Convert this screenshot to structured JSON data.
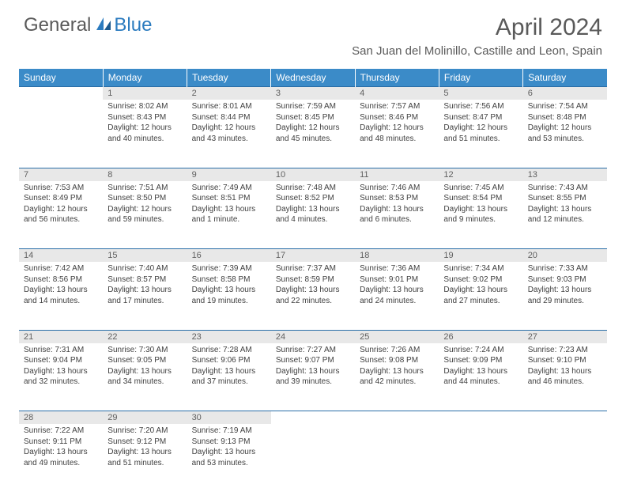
{
  "logo": {
    "general": "General",
    "blue": "Blue"
  },
  "title": "April 2024",
  "location": "San Juan del Molinillo, Castille and Leon, Spain",
  "weekdays": [
    "Sunday",
    "Monday",
    "Tuesday",
    "Wednesday",
    "Thursday",
    "Friday",
    "Saturday"
  ],
  "colors": {
    "header_bg": "#3b8bc8",
    "header_text": "#ffffff",
    "daynum_bg": "#e8e8e8",
    "row_border": "#2b6fa8",
    "body_text": "#404040",
    "title_text": "#5a5a5a",
    "logo_blue": "#2b7bbf"
  },
  "weeks": [
    {
      "nums": [
        "",
        "1",
        "2",
        "3",
        "4",
        "5",
        "6"
      ],
      "cells": [
        {
          "sunrise": "",
          "sunset": "",
          "daylight": ""
        },
        {
          "sunrise": "Sunrise: 8:02 AM",
          "sunset": "Sunset: 8:43 PM",
          "daylight": "Daylight: 12 hours and 40 minutes."
        },
        {
          "sunrise": "Sunrise: 8:01 AM",
          "sunset": "Sunset: 8:44 PM",
          "daylight": "Daylight: 12 hours and 43 minutes."
        },
        {
          "sunrise": "Sunrise: 7:59 AM",
          "sunset": "Sunset: 8:45 PM",
          "daylight": "Daylight: 12 hours and 45 minutes."
        },
        {
          "sunrise": "Sunrise: 7:57 AM",
          "sunset": "Sunset: 8:46 PM",
          "daylight": "Daylight: 12 hours and 48 minutes."
        },
        {
          "sunrise": "Sunrise: 7:56 AM",
          "sunset": "Sunset: 8:47 PM",
          "daylight": "Daylight: 12 hours and 51 minutes."
        },
        {
          "sunrise": "Sunrise: 7:54 AM",
          "sunset": "Sunset: 8:48 PM",
          "daylight": "Daylight: 12 hours and 53 minutes."
        }
      ]
    },
    {
      "nums": [
        "7",
        "8",
        "9",
        "10",
        "11",
        "12",
        "13"
      ],
      "cells": [
        {
          "sunrise": "Sunrise: 7:53 AM",
          "sunset": "Sunset: 8:49 PM",
          "daylight": "Daylight: 12 hours and 56 minutes."
        },
        {
          "sunrise": "Sunrise: 7:51 AM",
          "sunset": "Sunset: 8:50 PM",
          "daylight": "Daylight: 12 hours and 59 minutes."
        },
        {
          "sunrise": "Sunrise: 7:49 AM",
          "sunset": "Sunset: 8:51 PM",
          "daylight": "Daylight: 13 hours and 1 minute."
        },
        {
          "sunrise": "Sunrise: 7:48 AM",
          "sunset": "Sunset: 8:52 PM",
          "daylight": "Daylight: 13 hours and 4 minutes."
        },
        {
          "sunrise": "Sunrise: 7:46 AM",
          "sunset": "Sunset: 8:53 PM",
          "daylight": "Daylight: 13 hours and 6 minutes."
        },
        {
          "sunrise": "Sunrise: 7:45 AM",
          "sunset": "Sunset: 8:54 PM",
          "daylight": "Daylight: 13 hours and 9 minutes."
        },
        {
          "sunrise": "Sunrise: 7:43 AM",
          "sunset": "Sunset: 8:55 PM",
          "daylight": "Daylight: 13 hours and 12 minutes."
        }
      ]
    },
    {
      "nums": [
        "14",
        "15",
        "16",
        "17",
        "18",
        "19",
        "20"
      ],
      "cells": [
        {
          "sunrise": "Sunrise: 7:42 AM",
          "sunset": "Sunset: 8:56 PM",
          "daylight": "Daylight: 13 hours and 14 minutes."
        },
        {
          "sunrise": "Sunrise: 7:40 AM",
          "sunset": "Sunset: 8:57 PM",
          "daylight": "Daylight: 13 hours and 17 minutes."
        },
        {
          "sunrise": "Sunrise: 7:39 AM",
          "sunset": "Sunset: 8:58 PM",
          "daylight": "Daylight: 13 hours and 19 minutes."
        },
        {
          "sunrise": "Sunrise: 7:37 AM",
          "sunset": "Sunset: 8:59 PM",
          "daylight": "Daylight: 13 hours and 22 minutes."
        },
        {
          "sunrise": "Sunrise: 7:36 AM",
          "sunset": "Sunset: 9:01 PM",
          "daylight": "Daylight: 13 hours and 24 minutes."
        },
        {
          "sunrise": "Sunrise: 7:34 AM",
          "sunset": "Sunset: 9:02 PM",
          "daylight": "Daylight: 13 hours and 27 minutes."
        },
        {
          "sunrise": "Sunrise: 7:33 AM",
          "sunset": "Sunset: 9:03 PM",
          "daylight": "Daylight: 13 hours and 29 minutes."
        }
      ]
    },
    {
      "nums": [
        "21",
        "22",
        "23",
        "24",
        "25",
        "26",
        "27"
      ],
      "cells": [
        {
          "sunrise": "Sunrise: 7:31 AM",
          "sunset": "Sunset: 9:04 PM",
          "daylight": "Daylight: 13 hours and 32 minutes."
        },
        {
          "sunrise": "Sunrise: 7:30 AM",
          "sunset": "Sunset: 9:05 PM",
          "daylight": "Daylight: 13 hours and 34 minutes."
        },
        {
          "sunrise": "Sunrise: 7:28 AM",
          "sunset": "Sunset: 9:06 PM",
          "daylight": "Daylight: 13 hours and 37 minutes."
        },
        {
          "sunrise": "Sunrise: 7:27 AM",
          "sunset": "Sunset: 9:07 PM",
          "daylight": "Daylight: 13 hours and 39 minutes."
        },
        {
          "sunrise": "Sunrise: 7:26 AM",
          "sunset": "Sunset: 9:08 PM",
          "daylight": "Daylight: 13 hours and 42 minutes."
        },
        {
          "sunrise": "Sunrise: 7:24 AM",
          "sunset": "Sunset: 9:09 PM",
          "daylight": "Daylight: 13 hours and 44 minutes."
        },
        {
          "sunrise": "Sunrise: 7:23 AM",
          "sunset": "Sunset: 9:10 PM",
          "daylight": "Daylight: 13 hours and 46 minutes."
        }
      ]
    },
    {
      "nums": [
        "28",
        "29",
        "30",
        "",
        "",
        "",
        ""
      ],
      "cells": [
        {
          "sunrise": "Sunrise: 7:22 AM",
          "sunset": "Sunset: 9:11 PM",
          "daylight": "Daylight: 13 hours and 49 minutes."
        },
        {
          "sunrise": "Sunrise: 7:20 AM",
          "sunset": "Sunset: 9:12 PM",
          "daylight": "Daylight: 13 hours and 51 minutes."
        },
        {
          "sunrise": "Sunrise: 7:19 AM",
          "sunset": "Sunset: 9:13 PM",
          "daylight": "Daylight: 13 hours and 53 minutes."
        },
        {
          "sunrise": "",
          "sunset": "",
          "daylight": ""
        },
        {
          "sunrise": "",
          "sunset": "",
          "daylight": ""
        },
        {
          "sunrise": "",
          "sunset": "",
          "daylight": ""
        },
        {
          "sunrise": "",
          "sunset": "",
          "daylight": ""
        }
      ]
    }
  ]
}
